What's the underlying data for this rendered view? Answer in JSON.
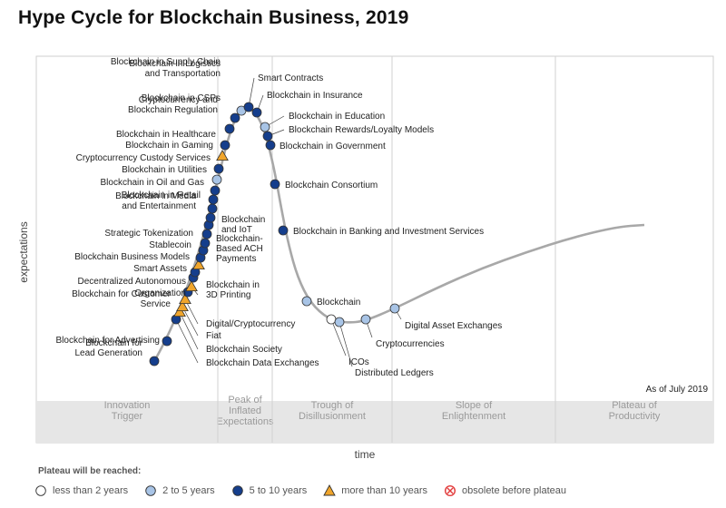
{
  "title": "Hype Cycle for Blockchain Business, 2019",
  "as_of": "As of July 2019",
  "colors": {
    "lt2": "#ffffff",
    "y2to5": "#a8c4e6",
    "y5to10": "#153e8c",
    "gt10": "#f0a52b",
    "obsolete": "#e23a3a",
    "curve": "#a8a8a8",
    "band": "#e6e6e6"
  },
  "chart_data": {
    "type": "scatter",
    "title": "Hype Cycle for Blockchain Business, 2019",
    "xlabel": "time",
    "ylabel": "expectations",
    "phases": [
      "Innovation\nTrigger",
      "Peak of\nInflated\nExpectations",
      "Trough of\nDisillusionment",
      "Slope of\nEnlightenment",
      "Plateau of\nProductivity"
    ],
    "legend_title": "Plateau will be reached:",
    "legend": [
      {
        "key": "lt2",
        "label": "less than 2 years"
      },
      {
        "key": "y2to5",
        "label": "2 to 5 years"
      },
      {
        "key": "y5to10",
        "label": "5 to 10 years"
      },
      {
        "key": "gt10",
        "label": "more than 10 years"
      },
      {
        "key": "obsolete",
        "label": "obsolete before plateau"
      }
    ],
    "points": [
      {
        "label": "Blockchain for\nLead Generation",
        "t": 0.02,
        "cat": "y5to10"
      },
      {
        "label": "Blockchain for Advertising",
        "t": 0.05,
        "cat": "y5to10"
      },
      {
        "label": "Blockchain Data Exchanges",
        "t": 0.08,
        "cat": "y5to10"
      },
      {
        "label": "Blockchain Society",
        "t": 0.095,
        "cat": "gt10"
      },
      {
        "label": "Fiat",
        "t": 0.105,
        "cat": "gt10"
      },
      {
        "label": "Digital/Cryptocurrency",
        "t": 0.115,
        "cat": "gt10"
      },
      {
        "label": "Blockchain for Customer\nService",
        "t": 0.125,
        "cat": "y5to10"
      },
      {
        "label": "Blockchain in\n3D Printing",
        "t": 0.14,
        "cat": "gt10"
      },
      {
        "label": "Organization",
        "t": 0.15,
        "cat": "y5to10"
      },
      {
        "label": "Decentralized Autonomous",
        "t": 0.16,
        "cat": "y5to10"
      },
      {
        "label": "Blockchain-\nBased ACH\nPayments",
        "t": 0.17,
        "cat": "gt10"
      },
      {
        "label": "Smart Assets",
        "t": 0.18,
        "cat": "y5to10"
      },
      {
        "label": "Blockchain Business Models",
        "t": 0.19,
        "cat": "y5to10"
      },
      {
        "label": "Blockchain\nand IoT",
        "t": 0.205,
        "cat": "y5to10"
      },
      {
        "label": "Stablecoin",
        "t": 0.215,
        "cat": "y5to10"
      },
      {
        "label": "Strategic Tokenization",
        "t": 0.225,
        "cat": "y5to10"
      },
      {
        "label": "Blockchain in Media\nand Entertainment",
        "t": 0.24,
        "cat": "y5to10"
      },
      {
        "label": "Blockchain in Retail",
        "t": 0.255,
        "cat": "y5to10"
      },
      {
        "label": "Blockchain in Oil and Gas",
        "t": 0.265,
        "cat": "y5to10"
      },
      {
        "label": "Blockchain in Utilities",
        "t": 0.275,
        "cat": "y5to10"
      },
      {
        "label": "Cryptocurrency Custody Services",
        "t": 0.285,
        "cat": "y2to5"
      },
      {
        "label": "Blockchain in Gaming",
        "t": 0.3,
        "cat": "y5to10"
      },
      {
        "label": "Blockchain in Healthcare",
        "t": 0.31,
        "cat": "gt10"
      },
      {
        "label": "Cryptocurrency and\nBlockchain Regulation",
        "t": 0.32,
        "cat": "y5to10"
      },
      {
        "label": "Blockchain in CSPs",
        "t": 0.335,
        "cat": "y5to10"
      },
      {
        "label": "Blockchain in Logistics\nand Transportation",
        "t": 0.345,
        "cat": "y5to10"
      },
      {
        "label": "Blockchain in Supply Chain",
        "t": 0.355,
        "cat": "y2to5"
      },
      {
        "label": "Smart Contracts",
        "t": 0.37,
        "cat": "y5to10"
      },
      {
        "label": "Blockchain in Insurance",
        "t": 0.385,
        "cat": "y5to10"
      },
      {
        "label": "Blockchain in Education",
        "t": 0.4,
        "cat": "y2to5"
      },
      {
        "label": "Blockchain Rewards/Loyalty Models",
        "t": 0.41,
        "cat": "y5to10"
      },
      {
        "label": "Blockchain in Government",
        "t": 0.42,
        "cat": "y5to10"
      },
      {
        "label": "Blockchain Consortium",
        "t": 0.45,
        "cat": "y5to10"
      },
      {
        "label": "Blockchain in Banking and Investment Services",
        "t": 0.48,
        "cat": "y5to10"
      },
      {
        "label": "Blockchain",
        "t": 0.55,
        "cat": "y2to5"
      },
      {
        "label": "ICOs",
        "t": 0.575,
        "cat": "lt2"
      },
      {
        "label": "Distributed Ledgers",
        "t": 0.59,
        "cat": "y2to5"
      },
      {
        "label": "Cryptocurrencies",
        "t": 0.63,
        "cat": "y2to5"
      },
      {
        "label": "Digital Asset Exchanges",
        "t": 0.67,
        "cat": "y2to5"
      }
    ]
  }
}
